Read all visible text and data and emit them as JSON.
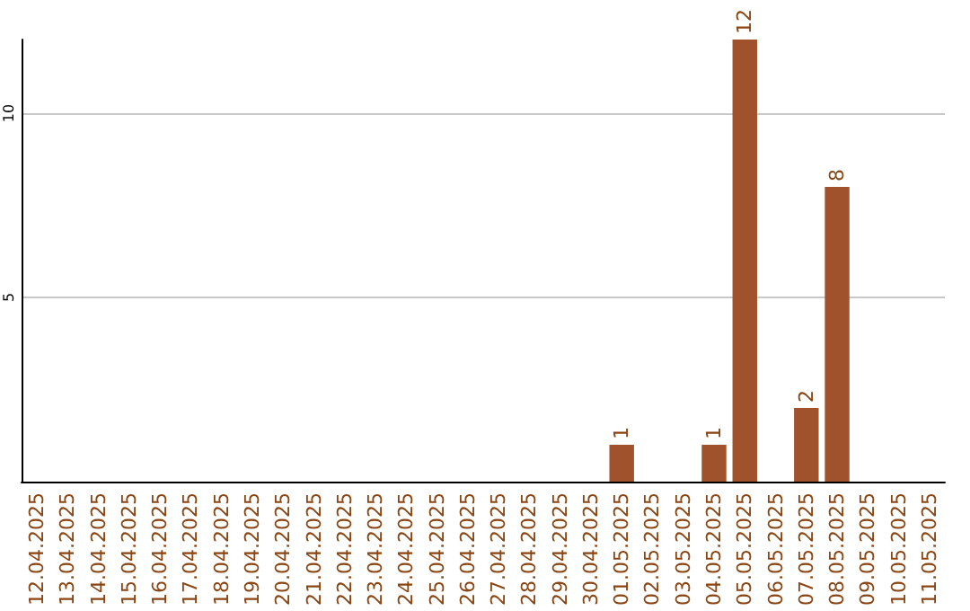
{
  "chart_data": {
    "type": "bar",
    "categories": [
      "12.04.2025",
      "13.04.2025",
      "14.04.2025",
      "15.04.2025",
      "16.04.2025",
      "17.04.2025",
      "18.04.2025",
      "19.04.2025",
      "20.04.2025",
      "21.04.2025",
      "22.04.2025",
      "23.04.2025",
      "24.04.2025",
      "25.04.2025",
      "26.04.2025",
      "27.04.2025",
      "28.04.2025",
      "29.04.2025",
      "30.04.2025",
      "01.05.2025",
      "02.05.2025",
      "03.05.2025",
      "04.05.2025",
      "05.05.2025",
      "06.05.2025",
      "07.05.2025",
      "08.05.2025",
      "09.05.2025",
      "10.05.2025",
      "11.05.2025"
    ],
    "values": [
      0,
      0,
      0,
      0,
      0,
      0,
      0,
      0,
      0,
      0,
      0,
      0,
      0,
      0,
      0,
      0,
      0,
      0,
      0,
      1,
      0,
      0,
      1,
      12,
      0,
      2,
      8,
      0,
      0,
      0
    ],
    "value_labels": [
      null,
      null,
      null,
      null,
      null,
      null,
      null,
      null,
      null,
      null,
      null,
      null,
      null,
      null,
      null,
      null,
      null,
      null,
      null,
      "1",
      null,
      null,
      "1",
      "12",
      null,
      "2",
      "8",
      null,
      null,
      null
    ],
    "color": "#a0522d",
    "ylim": [
      0,
      12
    ],
    "yticks": [
      5,
      10
    ],
    "grid": "y"
  }
}
